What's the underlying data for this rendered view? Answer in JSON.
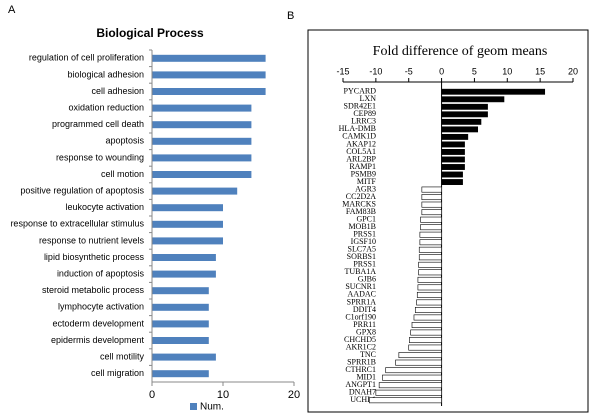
{
  "chart_data": [
    {
      "type": "bar",
      "panel": "A",
      "title": "Biological Process",
      "categories": [
        "regulation of cell proliferation",
        "biological adhesion",
        "cell adhesion",
        "oxidation reduction",
        "programmed cell death",
        "apoptosis",
        "response to wounding",
        "cell motion",
        "positive regulation of apoptosis",
        "leukocyte activation",
        "response to extracellular stimulus",
        "response to nutrient levels",
        "lipid biosynthetic process",
        "induction of apoptosis",
        "steroid metabolic process",
        "lymphocyte activation",
        "ectoderm development",
        "epidermis development",
        "cell motility",
        "cell migration"
      ],
      "series": [
        {
          "name": "Num.",
          "color": "#4f81bd",
          "values": [
            16,
            16,
            16,
            14,
            14,
            14,
            14,
            14,
            12,
            10,
            10,
            10,
            9,
            9,
            8,
            8,
            8,
            8,
            9,
            8
          ]
        }
      ],
      "xlim": [
        0,
        20
      ],
      "xticks": [
        0,
        10,
        20
      ],
      "legend": "bottom"
    },
    {
      "type": "bar",
      "panel": "B",
      "title": "Fold difference of geom means",
      "categories": [
        "PYCARD",
        "LXN",
        "SDR42E1",
        "CEP89",
        "LRRC3",
        "HLA-DMB",
        "CAMK1D",
        "AKAP12",
        "COL5A1",
        "ARL2BP",
        "RAMP1",
        "PSMB9",
        "MITF",
        "AGR3",
        "CC2D2A",
        "MARCKS",
        "FAM83B",
        "GPC1",
        "MOB1B",
        "PRSS1",
        "IGSF10",
        "SLC7A5",
        "SORBS1",
        "PRSS1",
        "TUBA1A",
        "GJB6",
        "SUCNR1",
        "AADAC",
        "SPRR1A",
        "DDIT4",
        "C1orf190",
        "PRR11",
        "GPX8",
        "CHCHD5",
        "AKR1C2",
        "TNC",
        "SPRR1B",
        "CTHRC1",
        "MID1",
        "ANGPT1",
        "DNAH7",
        "UCHL1"
      ],
      "values": [
        15.7,
        9.5,
        7,
        7,
        6,
        5.5,
        4,
        3.5,
        3.5,
        3.5,
        3.5,
        3.2,
        3.2,
        -3,
        -3,
        -3,
        -3,
        -3.2,
        -3.2,
        -3.3,
        -3.3,
        -3.4,
        -3.4,
        -3.5,
        -3.5,
        -3.6,
        -3.6,
        -3.7,
        -3.8,
        -4,
        -4.2,
        -4.5,
        -4.7,
        -4.9,
        -5,
        -6.5,
        -7,
        -8.5,
        -9,
        -9.5,
        -10,
        -11
      ],
      "color": "#000000",
      "negative_color": "#ffffff",
      "xlim": [
        -15,
        20
      ],
      "xticks": [
        -15,
        -10,
        -5,
        0,
        5,
        10,
        15,
        20
      ]
    }
  ]
}
